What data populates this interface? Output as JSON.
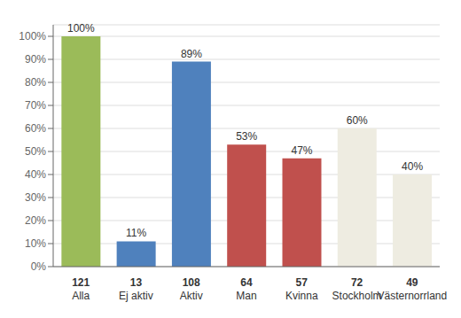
{
  "chart_data": {
    "type": "bar",
    "categories": [
      [
        "121",
        "Alla"
      ],
      [
        "13",
        "Ej aktiv"
      ],
      [
        "108",
        "Aktiv"
      ],
      [
        "64",
        "Man"
      ],
      [
        "57",
        "Kvinna"
      ],
      [
        "72",
        "Stockholm"
      ],
      [
        "49",
        "Västernorrland"
      ]
    ],
    "values": [
      100,
      11,
      89,
      53,
      47,
      60,
      40
    ],
    "value_labels": [
      "100%",
      "11%",
      "89%",
      "53%",
      "47%",
      "60%",
      "40%"
    ],
    "data_labels": true,
    "colors": [
      "#9BBB59",
      "#4F81BD",
      "#4F81BD",
      "#C0504D",
      "#C0504D",
      "#EEECE1",
      "#EEECE1"
    ],
    "ylim": [
      0,
      105
    ],
    "yticks": [
      {
        "value": 0,
        "label": "0%"
      },
      {
        "value": 10,
        "label": "10%"
      },
      {
        "value": 20,
        "label": "20%"
      },
      {
        "value": 30,
        "label": "30%"
      },
      {
        "value": 40,
        "label": "40%"
      },
      {
        "value": 50,
        "label": "50%"
      },
      {
        "value": 60,
        "label": "60%"
      },
      {
        "value": 70,
        "label": "70%"
      },
      {
        "value": 80,
        "label": "80%"
      },
      {
        "value": 90,
        "label": "90%"
      },
      {
        "value": 100,
        "label": "100%"
      }
    ],
    "grid": true
  }
}
